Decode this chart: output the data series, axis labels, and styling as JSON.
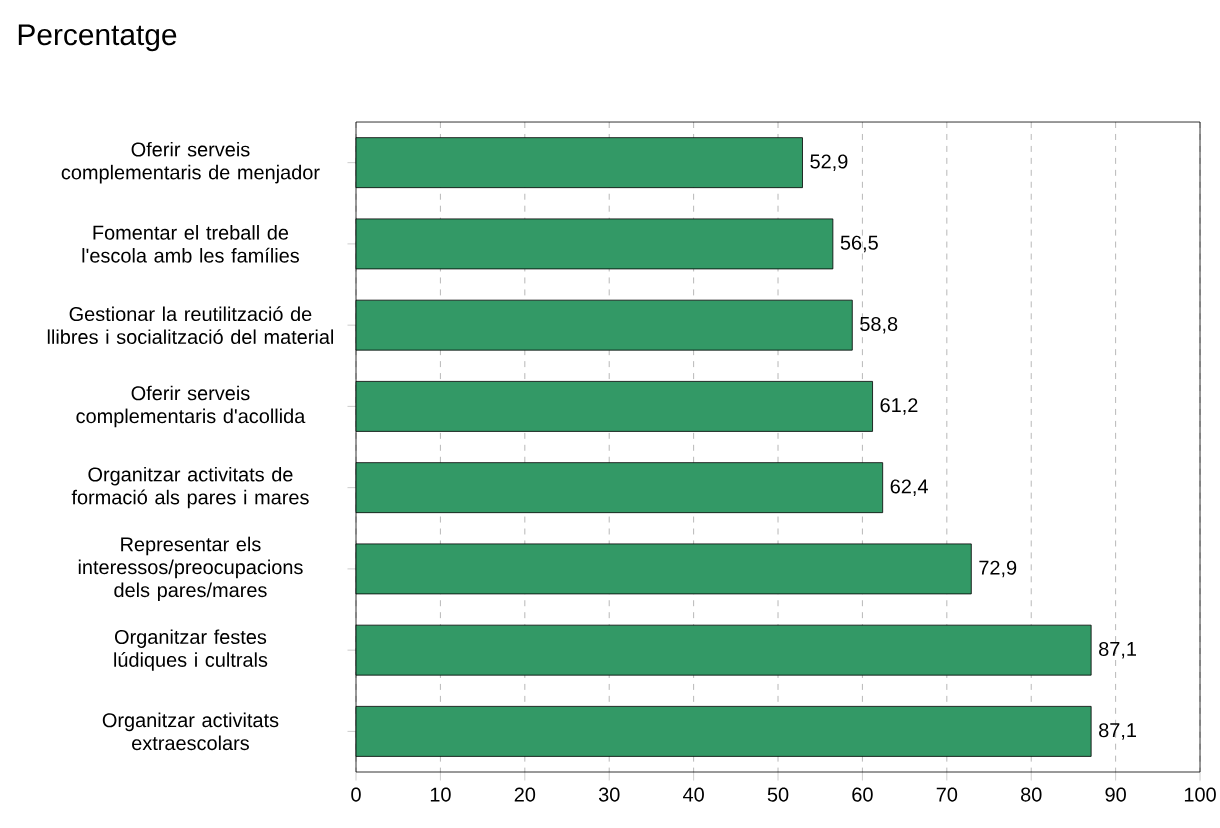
{
  "chart_data": {
    "type": "bar",
    "orientation": "horizontal",
    "title": "Percentatge",
    "categories": [
      "Oferir serveis complementaris de menjador",
      "Fomentar el treball de l'escola amb les famílies",
      "Gestionar la reutilització de llibres i socialització del material",
      "Oferir serveis complementaris d'acollida",
      "Organitzar activitats de formació als pares i mares",
      "Representar els interessos/preocupacions dels pares/mares",
      "Organitzar festes lúdiques i cultrals",
      "Organitzar activitats extraescolars"
    ],
    "values": [
      52.9,
      56.5,
      58.8,
      61.2,
      62.4,
      72.9,
      87.1,
      87.1
    ],
    "value_labels": [
      "52,9",
      "56,5",
      "58,8",
      "61,2",
      "62,4",
      "72,9",
      "87,1",
      "87,1"
    ],
    "color": "#339966",
    "xlim": [
      0,
      100
    ],
    "xticks": [
      0,
      10,
      20,
      30,
      40,
      50,
      60,
      70,
      80,
      90,
      100
    ],
    "grid": "x"
  }
}
